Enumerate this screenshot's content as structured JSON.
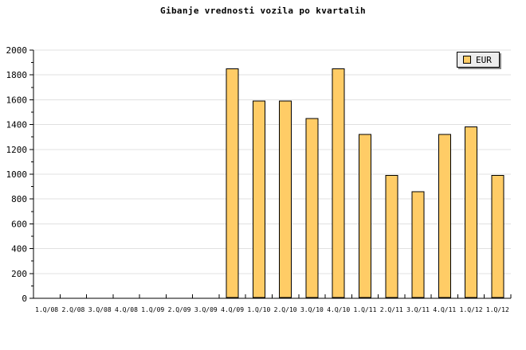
{
  "page": {
    "background": "#FFFFFF"
  },
  "chart_data": {
    "type": "bar",
    "title": "Gibanje vrednosti vozila po kvartalih",
    "categories": [
      "1.Q/08",
      "2.Q/08",
      "3.Q/08",
      "4.Q/08",
      "1.Q/09",
      "2.Q/09",
      "3.Q/09",
      "4.Q/09",
      "1.Q/10",
      "2.Q/10",
      "3.Q/10",
      "4.Q/10",
      "1.Q/11",
      "2.Q/11",
      "3.Q/11",
      "4.Q/11",
      "1.Q/12",
      "1.Q/12"
    ],
    "series": [
      {
        "name": "EUR",
        "values": [
          null,
          null,
          null,
          null,
          null,
          null,
          null,
          1850,
          1590,
          1590,
          1450,
          1850,
          1320,
          990,
          860,
          1320,
          1380,
          990
        ]
      }
    ],
    "xlabel": "",
    "ylabel": "",
    "ylim": [
      0,
      2000
    ],
    "y_major_step": 200,
    "y_minor_step": 100,
    "grid": true,
    "legend": {
      "label": "EUR",
      "position": "top-right"
    },
    "colors": {
      "bar_fill": "#FFCC66",
      "bar_border": "#000000",
      "gridline": "#E0E0E0",
      "axis": "#000000",
      "text": "#000000",
      "legend_bg": "#EDEDED",
      "legend_border": "#000000",
      "legend_shadow": "#888888"
    }
  }
}
